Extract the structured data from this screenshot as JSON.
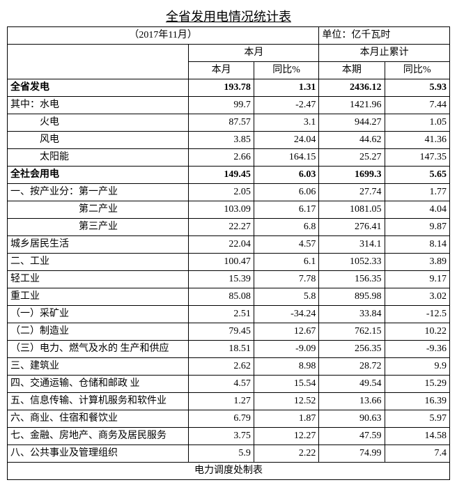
{
  "title": "全省发用电情况统计表",
  "subtitle": "（2017年11月）",
  "unit": "单位：亿千瓦时",
  "headers": {
    "group1": "本月",
    "group2": "本月止累计",
    "col1": "本月",
    "col2": "同比%",
    "col3": "本期",
    "col4": "同比%"
  },
  "rows": [
    {
      "label": "全省发电",
      "v1": "193.78",
      "v2": "1.31",
      "v3": "2436.12",
      "v4": "5.93",
      "bold": true
    },
    {
      "label": "其中：水电",
      "v1": "99.7",
      "v2": "-2.47",
      "v3": "1421.96",
      "v4": "7.44"
    },
    {
      "label": "　　　火电",
      "v1": "87.57",
      "v2": "3.1",
      "v3": "944.27",
      "v4": "1.05"
    },
    {
      "label": "　　　风电",
      "v1": "3.85",
      "v2": "24.04",
      "v3": "44.62",
      "v4": "41.36"
    },
    {
      "label": "　　　太阳能",
      "v1": "2.66",
      "v2": "164.15",
      "v3": "25.27",
      "v4": "147.35"
    },
    {
      "label": "全社会用电",
      "v1": "149.45",
      "v2": "6.03",
      "v3": "1699.3",
      "v4": "5.65",
      "bold": true
    },
    {
      "label": "一、按产业分：第一产业",
      "v1": "2.05",
      "v2": "6.06",
      "v3": "27.74",
      "v4": "1.77"
    },
    {
      "label": "　　　　　　　第二产业",
      "v1": "103.09",
      "v2": "6.17",
      "v3": "1081.05",
      "v4": "4.04"
    },
    {
      "label": "　　　　　　　第三产业",
      "v1": "22.27",
      "v2": "6.8",
      "v3": "276.41",
      "v4": "9.87"
    },
    {
      "label": "城乡居民生活",
      "v1": "22.04",
      "v2": "4.57",
      "v3": "314.1",
      "v4": "8.14"
    },
    {
      "label": "二、工业",
      "v1": "100.47",
      "v2": "6.1",
      "v3": "1052.33",
      "v4": "3.89"
    },
    {
      "label": "轻工业",
      "v1": "15.39",
      "v2": "7.78",
      "v3": "156.35",
      "v4": "9.17"
    },
    {
      "label": "重工业",
      "v1": "85.08",
      "v2": "5.8",
      "v3": "895.98",
      "v4": "3.02"
    },
    {
      "label": "（一）采矿业",
      "v1": "2.51",
      "v2": "-34.24",
      "v3": "33.84",
      "v4": "-12.5"
    },
    {
      "label": "（二）制造业",
      "v1": "79.45",
      "v2": "12.67",
      "v3": "762.15",
      "v4": "10.22"
    },
    {
      "label": "（三）电力、燃气及水的 生产和供应",
      "v1": "18.51",
      "v2": "-9.09",
      "v3": "256.35",
      "v4": "-9.36"
    },
    {
      "label": "三、建筑业",
      "v1": "2.62",
      "v2": "8.98",
      "v3": "28.72",
      "v4": "9.9"
    },
    {
      "label": "四、交通运输、仓储和邮政 业",
      "v1": "4.57",
      "v2": "15.54",
      "v3": "49.54",
      "v4": "15.29"
    },
    {
      "label": "五、信息传输、计算机服务和软件业",
      "v1": "1.27",
      "v2": "12.52",
      "v3": "13.66",
      "v4": "16.39"
    },
    {
      "label": "六、商业、住宿和餐饮业",
      "v1": "6.79",
      "v2": "1.87",
      "v3": "90.63",
      "v4": "5.97"
    },
    {
      "label": "七、金融、房地产、商务及居民服务",
      "v1": "3.75",
      "v2": "12.27",
      "v3": "47.59",
      "v4": "14.58"
    },
    {
      "label": "八、公共事业及管理组织",
      "v1": "5.9",
      "v2": "2.22",
      "v3": "74.99",
      "v4": "7.4"
    }
  ],
  "footer": "电力调度处制表"
}
